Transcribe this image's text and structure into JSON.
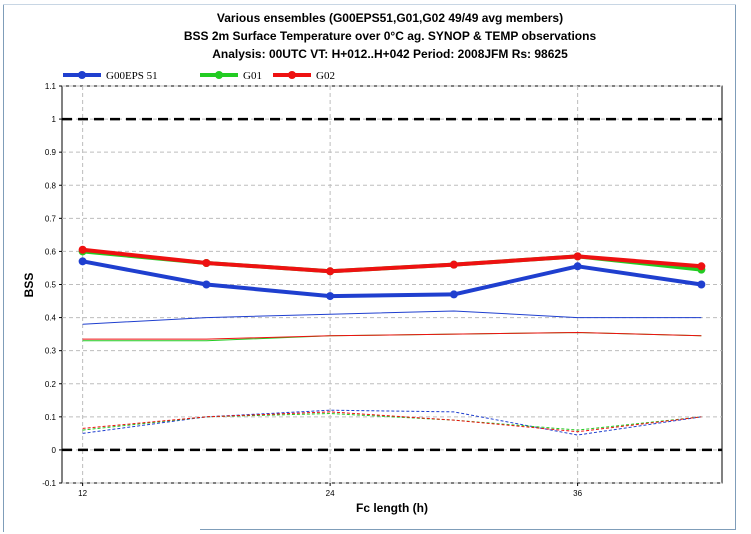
{
  "chart_data": {
    "type": "line",
    "title_lines": [
      "Various ensembles   (G00EPS51,G01,G02 49/49 avg members)",
      "BSS  2m Surface Temperature over 0°C  ag. SYNOP & TEMP observations",
      "Analysis: 00UTC  VT: H+012..H+042   Period: 2008JFM   Rs: 98625"
    ],
    "xlabel": "Fc length (h)",
    "ylabel": "BSS",
    "xlim": [
      11,
      43
    ],
    "ylim": [
      -0.1,
      1.1
    ],
    "x_ticks": [
      "12",
      "24",
      "36"
    ],
    "y_ticks": [
      "-0.1",
      "0",
      "0.1",
      "0.2",
      "0.3",
      "0.4",
      "0.5",
      "0.6",
      "0.7",
      "0.8",
      "0.9",
      "1",
      "1.1"
    ],
    "reference_lines": [
      0,
      1
    ],
    "grid": true,
    "legend_position": "top-left",
    "x": [
      12,
      18,
      24,
      30,
      36,
      42
    ],
    "series": [
      {
        "name": "G00EPS 51",
        "color": "#1f3fcf",
        "bss": [
          0.57,
          0.5,
          0.465,
          0.47,
          0.555,
          0.5
        ],
        "reference_solid": [
          0.38,
          0.4,
          0.41,
          0.42,
          0.4,
          0.4
        ],
        "reference_dashed": [
          0.05,
          0.1,
          0.12,
          0.115,
          0.045,
          0.1
        ]
      },
      {
        "name": "G01",
        "color": "#22cc22",
        "bss": [
          0.6,
          0.565,
          0.54,
          0.56,
          0.585,
          0.545
        ],
        "reference_solid": [
          0.33,
          0.33,
          0.345,
          0.35,
          0.355,
          0.345
        ],
        "reference_dashed": [
          0.06,
          0.1,
          0.11,
          0.09,
          0.06,
          0.1
        ]
      },
      {
        "name": "G02",
        "color": "#ee1111",
        "bss": [
          0.605,
          0.565,
          0.54,
          0.56,
          0.585,
          0.555
        ],
        "reference_solid": [
          0.335,
          0.335,
          0.345,
          0.35,
          0.355,
          0.345
        ],
        "reference_dashed": [
          0.065,
          0.1,
          0.115,
          0.09,
          0.055,
          0.1
        ]
      }
    ]
  }
}
